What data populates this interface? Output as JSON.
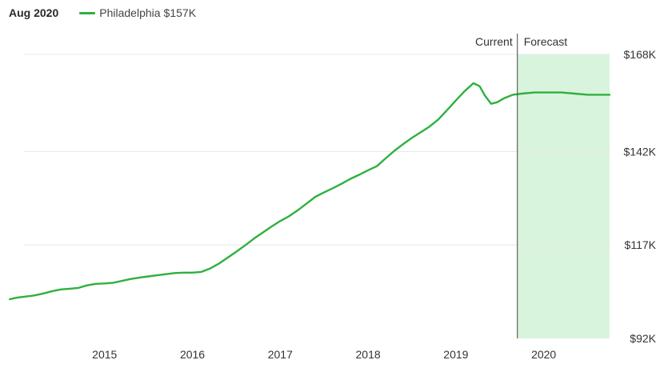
{
  "header": {
    "date": "Aug 2020"
  },
  "legend": {
    "name": "Philadelphia",
    "value": "$157K"
  },
  "colors": {
    "series": "#2fb040",
    "forecast_fill": "#d9f4dc",
    "grid": "#e8e8e8",
    "divider": "#444444"
  },
  "chart_data": {
    "type": "line",
    "annotations": {
      "current": "Current",
      "forecast": "Forecast"
    },
    "x_ticks": [
      {
        "value": 2015,
        "label": "2015"
      },
      {
        "value": 2016,
        "label": "2016"
      },
      {
        "value": 2017,
        "label": "2017"
      },
      {
        "value": 2018,
        "label": "2018"
      },
      {
        "value": 2019,
        "label": "2019"
      },
      {
        "value": 2020,
        "label": "2020"
      }
    ],
    "y_ticks": [
      {
        "value": 92,
        "label": "$92K"
      },
      {
        "value": 117,
        "label": "$117K"
      },
      {
        "value": 142,
        "label": "$142K"
      },
      {
        "value": 168,
        "label": "$168K"
      }
    ],
    "xlim": [
      2013.9,
      2020.75
    ],
    "ylim": [
      92,
      168
    ],
    "forecast_start": 2019.7,
    "series": [
      {
        "name": "Philadelphia",
        "points": [
          [
            2013.92,
            102.5
          ],
          [
            2014.0,
            102.9
          ],
          [
            2014.1,
            103.2
          ],
          [
            2014.2,
            103.5
          ],
          [
            2014.3,
            104.0
          ],
          [
            2014.4,
            104.6
          ],
          [
            2014.5,
            105.1
          ],
          [
            2014.6,
            105.3
          ],
          [
            2014.7,
            105.5
          ],
          [
            2014.8,
            106.2
          ],
          [
            2014.9,
            106.6
          ],
          [
            2015.0,
            106.7
          ],
          [
            2015.1,
            106.9
          ],
          [
            2015.2,
            107.4
          ],
          [
            2015.3,
            107.9
          ],
          [
            2015.4,
            108.3
          ],
          [
            2015.5,
            108.6
          ],
          [
            2015.6,
            108.9
          ],
          [
            2015.7,
            109.2
          ],
          [
            2015.8,
            109.5
          ],
          [
            2015.9,
            109.6
          ],
          [
            2016.0,
            109.6
          ],
          [
            2016.1,
            109.8
          ],
          [
            2016.2,
            110.7
          ],
          [
            2016.3,
            112.0
          ],
          [
            2016.4,
            113.6
          ],
          [
            2016.5,
            115.2
          ],
          [
            2016.6,
            116.9
          ],
          [
            2016.7,
            118.7
          ],
          [
            2016.8,
            120.3
          ],
          [
            2016.9,
            121.9
          ],
          [
            2017.0,
            123.4
          ],
          [
            2017.1,
            124.7
          ],
          [
            2017.2,
            126.3
          ],
          [
            2017.3,
            128.1
          ],
          [
            2017.4,
            129.9
          ],
          [
            2017.5,
            131.1
          ],
          [
            2017.6,
            132.2
          ],
          [
            2017.7,
            133.4
          ],
          [
            2017.8,
            134.7
          ],
          [
            2017.9,
            135.8
          ],
          [
            2018.0,
            137.0
          ],
          [
            2018.1,
            138.1
          ],
          [
            2018.2,
            140.2
          ],
          [
            2018.3,
            142.2
          ],
          [
            2018.4,
            144.0
          ],
          [
            2018.5,
            145.7
          ],
          [
            2018.6,
            147.2
          ],
          [
            2018.7,
            148.7
          ],
          [
            2018.8,
            150.6
          ],
          [
            2018.9,
            153.1
          ],
          [
            2019.0,
            155.7
          ],
          [
            2019.1,
            158.2
          ],
          [
            2019.2,
            160.3
          ],
          [
            2019.27,
            159.5
          ],
          [
            2019.33,
            157.0
          ],
          [
            2019.4,
            154.8
          ],
          [
            2019.47,
            155.2
          ],
          [
            2019.55,
            156.3
          ],
          [
            2019.65,
            157.2
          ],
          [
            2019.75,
            157.5
          ],
          [
            2019.9,
            157.8
          ],
          [
            2020.0,
            157.8
          ],
          [
            2020.2,
            157.8
          ],
          [
            2020.35,
            157.5
          ],
          [
            2020.5,
            157.2
          ],
          [
            2020.65,
            157.2
          ],
          [
            2020.75,
            157.2
          ]
        ]
      }
    ]
  }
}
